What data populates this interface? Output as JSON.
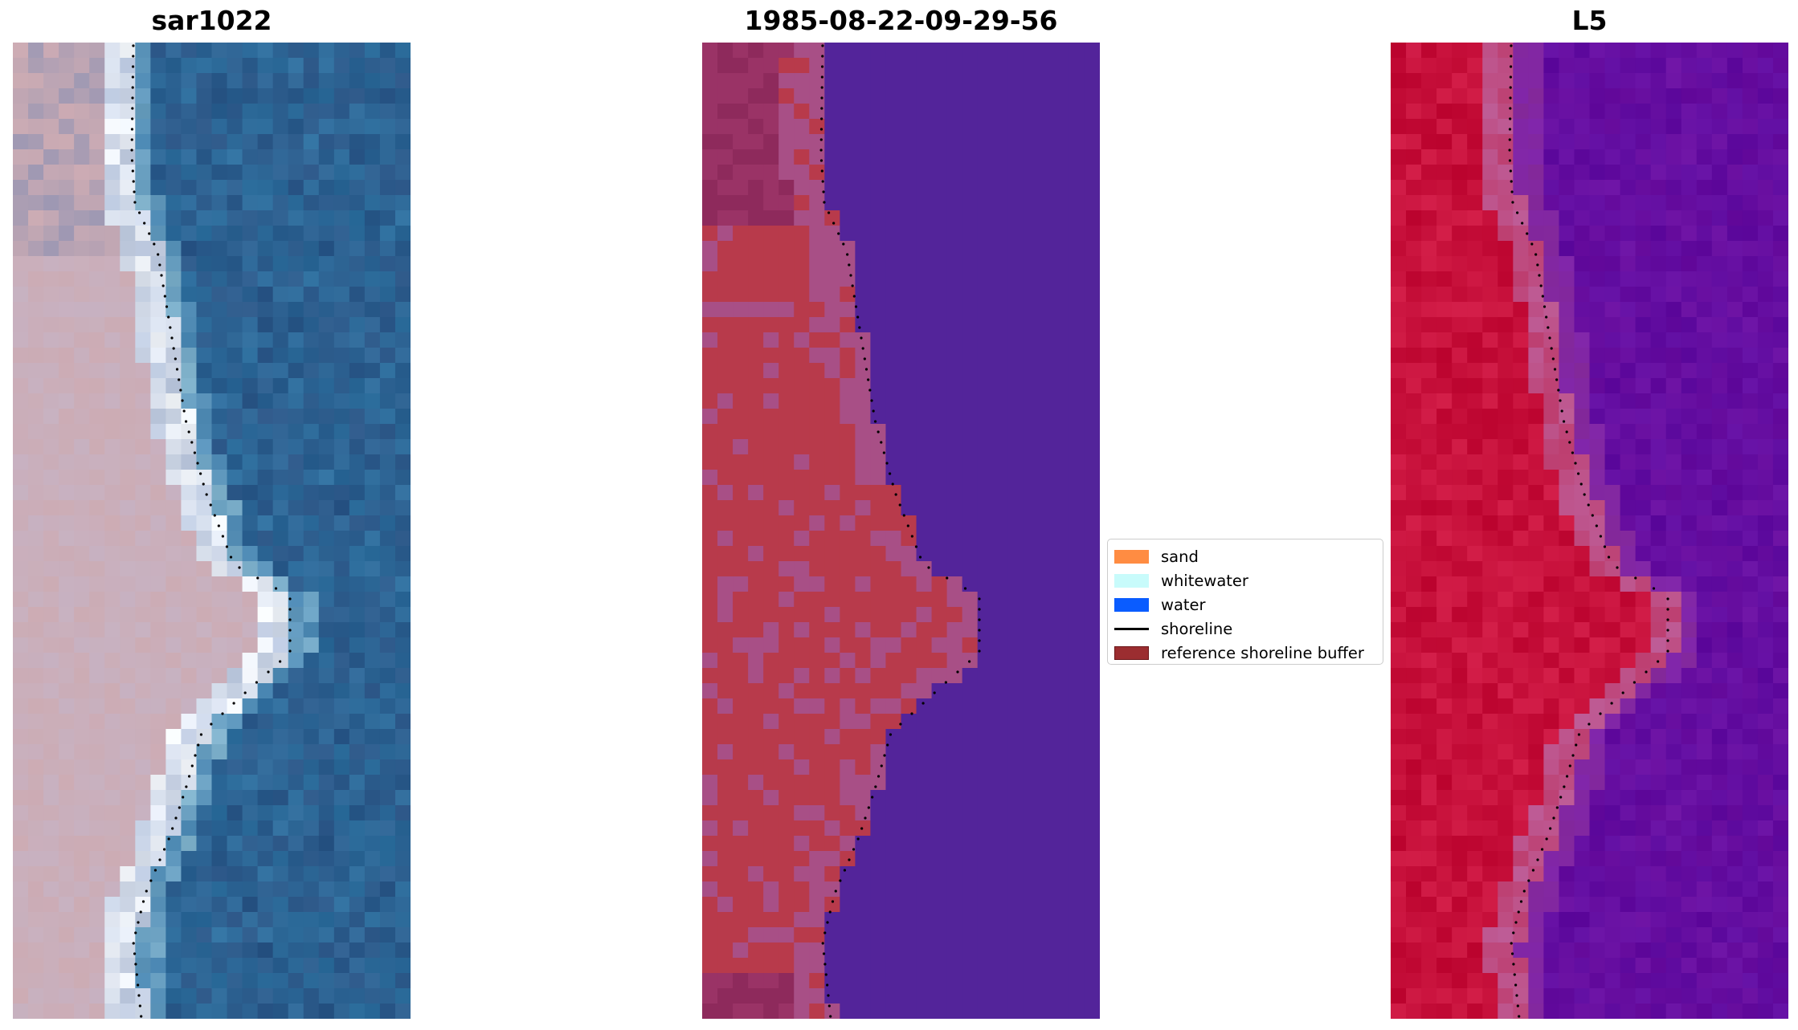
{
  "panels": [
    {
      "title": "sar1022",
      "kind": "rgb"
    },
    {
      "title": "1985-08-22-09-29-56",
      "kind": "classified"
    },
    {
      "title": "L5",
      "kind": "mndwi"
    }
  ],
  "legend": {
    "items": [
      {
        "label": "sand",
        "type": "patch",
        "color": "#ff8c42"
      },
      {
        "label": "whitewater",
        "type": "patch",
        "color": "#c8fbfb"
      },
      {
        "label": "water",
        "type": "patch",
        "color": "#0a5cff"
      },
      {
        "label": "shoreline",
        "type": "line",
        "color": "#000000"
      },
      {
        "label": "reference shoreline buffer",
        "type": "patch",
        "color": "#9b2d30"
      }
    ]
  },
  "colors": {
    "rgb_land": "#d9b8c0",
    "rgb_water": "#2e6f9e",
    "class_land": "#b83a4b",
    "class_buffer": "#a84f86",
    "class_water": "#53249a",
    "mndwi_land": "#c20a35",
    "mndwi_water": "#6a0fa0",
    "shoreline": "#000000"
  }
}
